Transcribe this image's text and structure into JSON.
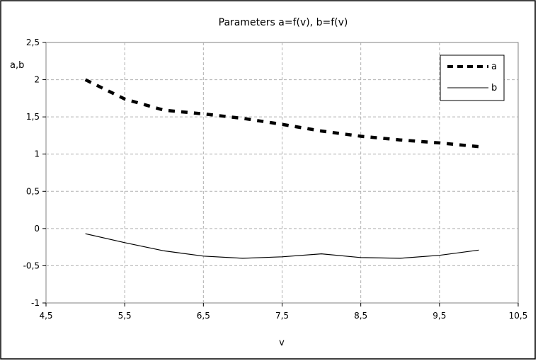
{
  "chart_data": {
    "type": "line",
    "title": "Parameters a=f(v),  b=f(v)",
    "xlabel": "v",
    "ylabel": "a,b",
    "xlim": [
      4.5,
      10.5
    ],
    "ylim": [
      -1,
      2.5
    ],
    "xticks": [
      4.5,
      5.5,
      6.5,
      7.5,
      8.5,
      9.5,
      10.5
    ],
    "yticks": [
      -1,
      -0.5,
      0,
      0.5,
      1,
      1.5,
      2,
      2.5
    ],
    "xtick_labels": [
      "4,5",
      "5,5",
      "6,5",
      "7,5",
      "8,5",
      "9,5",
      "10,5"
    ],
    "ytick_labels": [
      "-1",
      "-0,5",
      "0",
      "0,5",
      "1",
      "1,5",
      "2",
      "2,5"
    ],
    "grid": true,
    "legend": "top-right",
    "series": [
      {
        "name": "a",
        "style": "dashed",
        "color": "#000000",
        "x": [
          5.0,
          5.5,
          6.0,
          6.5,
          7.0,
          7.5,
          8.0,
          8.5,
          9.0,
          9.5,
          10.0
        ],
        "y": [
          2.0,
          1.74,
          1.59,
          1.54,
          1.48,
          1.4,
          1.31,
          1.24,
          1.19,
          1.15,
          1.1
        ]
      },
      {
        "name": "b",
        "style": "solid",
        "color": "#000000",
        "x": [
          5.0,
          5.5,
          6.0,
          6.5,
          7.0,
          7.5,
          8.0,
          8.5,
          9.0,
          9.5,
          10.0
        ],
        "y": [
          -0.07,
          -0.19,
          -0.3,
          -0.37,
          -0.4,
          -0.38,
          -0.34,
          -0.39,
          -0.4,
          -0.36,
          -0.29
        ]
      }
    ]
  }
}
